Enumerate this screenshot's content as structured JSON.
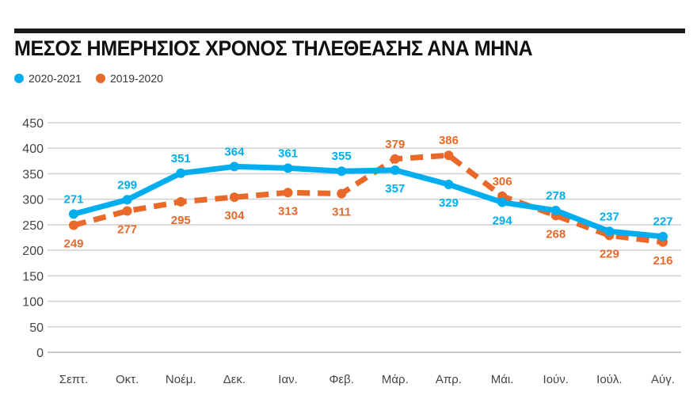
{
  "chart_data": {
    "type": "line",
    "title": "ΜΕΣΟΣ ΗΜΕΡΗΣΙΟΣ ΧΡΟΝΟΣ ΤΗΛΕΘΕΑΣΗΣ ΑΝΑ ΜΗΝΑ",
    "categories": [
      "Σεπτ.",
      "Οκτ.",
      "Νοέμ.",
      "Δεκ.",
      "Ιαν.",
      "Φεβ.",
      "Μάρ.",
      "Απρ.",
      "Μάι.",
      "Ιούν.",
      "Ιούλ.",
      "Αύγ."
    ],
    "series": [
      {
        "name": "2020-2021",
        "color": "#00aeef",
        "style": "solid",
        "values": [
          271,
          299,
          351,
          364,
          361,
          355,
          357,
          329,
          294,
          278,
          237,
          227
        ]
      },
      {
        "name": "2019-2020",
        "color": "#e8692a",
        "style": "dashed",
        "values": [
          249,
          277,
          295,
          304,
          313,
          311,
          379,
          386,
          306,
          268,
          229,
          216
        ]
      }
    ],
    "yticks": [
      0,
      50,
      100,
      150,
      200,
      250,
      300,
      350,
      400,
      450
    ],
    "ylim": [
      0,
      450
    ],
    "grid": true,
    "legend": "top-left",
    "xlabel": "",
    "ylabel": ""
  }
}
